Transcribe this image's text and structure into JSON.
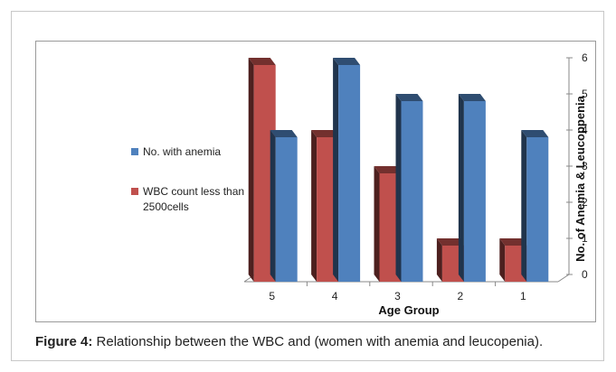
{
  "chart_data": {
    "type": "bar",
    "categories": [
      "5",
      "4",
      "3",
      "2",
      "1"
    ],
    "series": [
      {
        "name": "WBC count less than 2500cells",
        "values": [
          6,
          4,
          3,
          1,
          1
        ],
        "color": "#c0504d"
      },
      {
        "name": "No. with anemia",
        "values": [
          4,
          6,
          5,
          5,
          4
        ],
        "color": "#4f81bd"
      }
    ],
    "title": "",
    "xlabel": "Age Group",
    "ylabel": "No. of Anemia & Leucoppenia",
    "ylim": [
      0,
      6
    ],
    "yticks": [
      "0",
      "1",
      "2",
      "3",
      "4",
      "5",
      "6"
    ],
    "y_axis_side": "right",
    "legend_position": "left",
    "legend": {
      "anemia_line1": "No. with anemia",
      "wbc_line1": "WBC count less than",
      "wbc_line2": "2500cells"
    },
    "grid": false,
    "style": "3d-clustered-column"
  },
  "caption": {
    "label": "Figure 4:",
    "text": "Relationship between the WBC and (women with anemia and leucopenia)."
  }
}
